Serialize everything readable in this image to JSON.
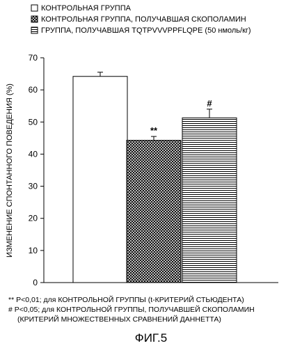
{
  "chart_data": {
    "type": "bar",
    "categories": [
      "КОНТРОЛЬНАЯ ГРУППА",
      "КОНТРОЛЬНАЯ ГРУППА, ПОЛУЧАВШАЯ СКОПОЛАМИН",
      "ГРУППА, ПОЛУЧАВШАЯ TQTPVVVPPFLQPE (50 нмоль/кг)"
    ],
    "values": [
      64.2,
      44.3,
      51.3
    ],
    "errors": [
      1.3,
      1.2,
      2.7
    ],
    "significance_labels": [
      "",
      "**",
      "#"
    ],
    "ylabel": "ИЗМЕНЕНИЕ СПОНТАННОГО ПОВЕДЕНИЯ (%)",
    "xlabel": "",
    "ylim": [
      0,
      70
    ],
    "yticks": [
      "0",
      "10",
      "20",
      "30",
      "40",
      "50",
      "60",
      "70"
    ],
    "grid": false,
    "legend_position": "top-left",
    "legend": [
      {
        "label": "КОНТРОЛЬНАЯ ГРУППА",
        "pattern": "white"
      },
      {
        "label": "КОНТРОЛЬНАЯ ГРУППА, ПОЛУЧАВШАЯ СКОПОЛАМИН",
        "pattern": "crosshatch"
      },
      {
        "label": "ГРУППА, ПОЛУЧАВШАЯ TQTPVVVPPFLQPE (50 нмоль/кг)",
        "pattern": "horizontal-lines"
      }
    ]
  },
  "footnotes": {
    "line1": "** P<0,01; для КОНТРОЛЬНОЙ ГРУППЫ (t-КРИТЕРИЙ СТЬЮДЕНТА)",
    "line2": "# P<0,05; для КОНТРОЛЬНОЙ ГРУППЫ, ПОЛУЧАВШЕЙ СКОПОЛАМИН",
    "line3": "(КРИТЕРИЙ МНОЖЕСТВЕННЫХ СРАВНЕНИЙ ДАННЕТТА)"
  },
  "caption": "ФИГ.5"
}
